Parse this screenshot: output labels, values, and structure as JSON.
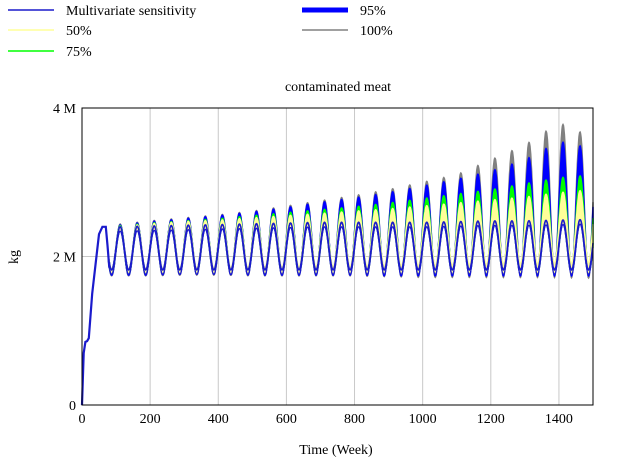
{
  "chart_data": {
    "type": "area",
    "title": "contaminated meat",
    "xlabel": "Time (Week)",
    "ylabel": "kg",
    "xlim": [
      0,
      1500
    ],
    "ylim": [
      0,
      4000000
    ],
    "x_ticks": [
      "0",
      "200",
      "400",
      "600",
      "800",
      "1000",
      "1200",
      "1400"
    ],
    "y_ticks": [
      "0",
      "2 M",
      "4 M"
    ],
    "grid": "vertical",
    "legend_position": "top",
    "legend": [
      {
        "label": "Multivariate sensitivity",
        "color": "#1a1acc"
      },
      {
        "label": "50%",
        "color": "#ffff99"
      },
      {
        "label": "75%",
        "color": "#00ff00"
      },
      {
        "label": "95%",
        "color": "#0000ff"
      },
      {
        "label": "100%",
        "color": "#808080"
      }
    ],
    "oscillation_period_weeks": 50,
    "series": [
      {
        "name": "Multivariate sensitivity",
        "x": [
          0,
          5,
          10,
          15,
          20,
          30,
          40,
          50,
          60,
          70,
          75,
          80
        ],
        "y": [
          0,
          700000,
          850000,
          860000,
          900000,
          1500000,
          1900000,
          2300000,
          2400000,
          2400000,
          2150000,
          1850000
        ]
      }
    ],
    "bands": {
      "x": [
        100,
        200,
        300,
        400,
        500,
        600,
        700,
        800,
        900,
        1000,
        1100,
        1200,
        1300,
        1400,
        1500
      ],
      "100%": {
        "upper": [
          2430000,
          2480000,
          2520000,
          2560000,
          2610000,
          2680000,
          2750000,
          2820000,
          2900000,
          3000000,
          3100000,
          3300000,
          3500000,
          3800000,
          3600000
        ],
        "lower": [
          1780000,
          1780000,
          1790000,
          1790000,
          1780000,
          1780000,
          1780000,
          1780000,
          1770000,
          1760000,
          1760000,
          1760000,
          1760000,
          1760000,
          1750000
        ]
      },
      "95%": {
        "upper": [
          2420000,
          2470000,
          2510000,
          2550000,
          2600000,
          2660000,
          2730000,
          2790000,
          2860000,
          2950000,
          3040000,
          3150000,
          3300000,
          3550000,
          3450000
        ],
        "lower": [
          1790000,
          1790000,
          1800000,
          1800000,
          1790000,
          1790000,
          1790000,
          1790000,
          1780000,
          1780000,
          1780000,
          1780000,
          1780000,
          1780000,
          1780000
        ]
      },
      "75%": {
        "upper": [
          2410000,
          2450000,
          2480000,
          2510000,
          2550000,
          2590000,
          2630000,
          2670000,
          2720000,
          2780000,
          2840000,
          2900000,
          2980000,
          3060000,
          3100000
        ],
        "lower": [
          1810000,
          1810000,
          1820000,
          1820000,
          1820000,
          1820000,
          1830000,
          1830000,
          1830000,
          1840000,
          1840000,
          1850000,
          1850000,
          1860000,
          1860000
        ]
      },
      "50%": {
        "upper": [
          2400000,
          2440000,
          2470000,
          2490000,
          2520000,
          2550000,
          2580000,
          2610000,
          2640000,
          2680000,
          2720000,
          2760000,
          2800000,
          2860000,
          2900000
        ],
        "lower": [
          1830000,
          1830000,
          1840000,
          1840000,
          1850000,
          1850000,
          1860000,
          1860000,
          1870000,
          1870000,
          1880000,
          1890000,
          1900000,
          1900000,
          1910000
        ]
      },
      "mean": {
        "upper": [
          2400000,
          2410000,
          2420000,
          2430000,
          2440000,
          2450000,
          2460000,
          2460000,
          2460000,
          2460000,
          2470000,
          2480000,
          2480000,
          2490000,
          2500000
        ],
        "lower": [
          1820000,
          1820000,
          1820000,
          1820000,
          1820000,
          1820000,
          1820000,
          1820000,
          1820000,
          1820000,
          1820000,
          1820000,
          1820000,
          1820000,
          1820000
        ]
      }
    }
  }
}
